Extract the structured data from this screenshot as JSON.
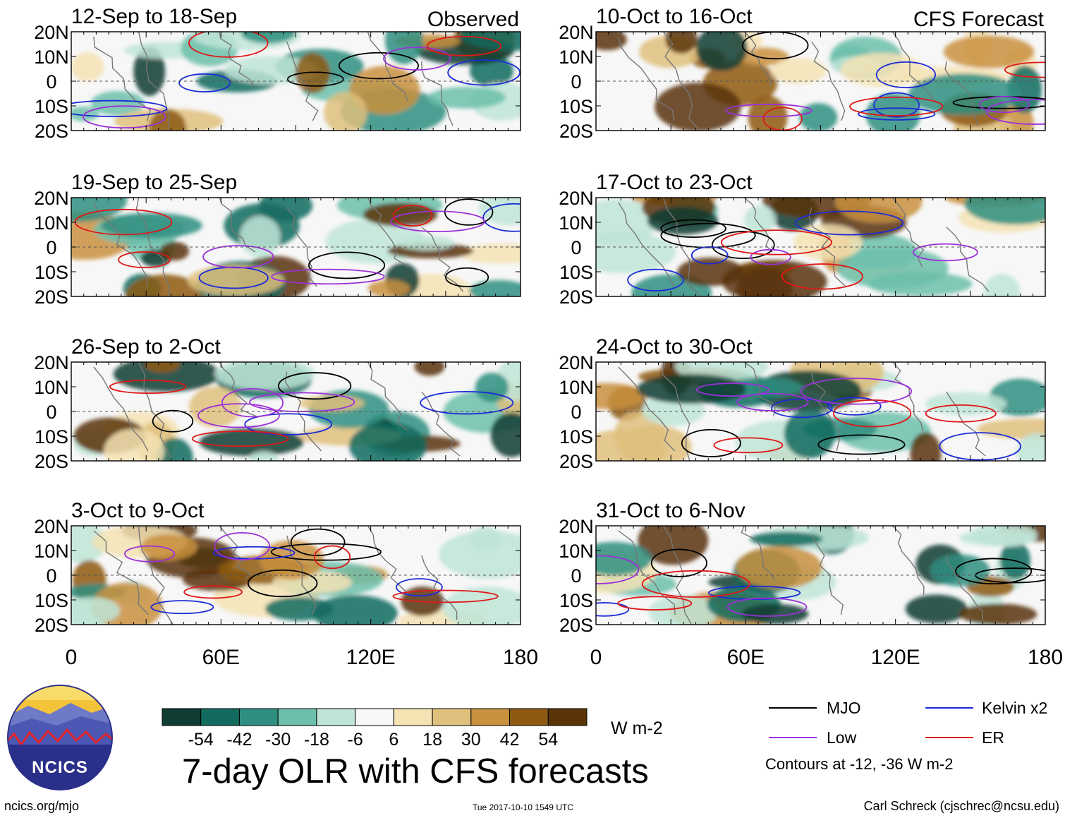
{
  "chart_data": {
    "type": "heatmap",
    "title": "7-day OLR with CFS forecasts",
    "units": "W m-2",
    "observed_label": "Observed",
    "forecast_label": "CFS Forecast",
    "x_ticks": [
      "0",
      "60E",
      "120E",
      "180"
    ],
    "y_ticks": [
      "20N",
      "10N",
      "0",
      "10S",
      "20S"
    ],
    "xlim": [
      0,
      180
    ],
    "ylim": [
      -20,
      20
    ],
    "panels": [
      {
        "period": "12-Sep to 18-Sep",
        "source": "Observed"
      },
      {
        "period": "19-Sep to 25-Sep",
        "source": "Observed"
      },
      {
        "period": "26-Sep to 2-Oct",
        "source": "Observed"
      },
      {
        "period": "3-Oct to 9-Oct",
        "source": "Observed"
      },
      {
        "period": "10-Oct to 16-Oct",
        "source": "CFS Forecast"
      },
      {
        "period": "17-Oct to 23-Oct",
        "source": "CFS Forecast"
      },
      {
        "period": "24-Oct to 30-Oct",
        "source": "CFS Forecast"
      },
      {
        "period": "31-Oct to 6-Nov",
        "source": "CFS Forecast"
      }
    ],
    "colorbar": {
      "labels": [
        "-54",
        "-42",
        "-30",
        "-18",
        "-6",
        "6",
        "18",
        "30",
        "42",
        "54"
      ],
      "colors": [
        "#0f3d33",
        "#136b5f",
        "#2f8f80",
        "#6cc0ab",
        "#bfe5d7",
        "#f7f7f7",
        "#f5e3b4",
        "#dfc07c",
        "#c9913e",
        "#8e5a13",
        "#5a3408"
      ]
    },
    "contour_legend": [
      {
        "name": "MJO",
        "color": "#000000"
      },
      {
        "name": "Kelvin x2",
        "color": "#1c2bd6"
      },
      {
        "name": "Low",
        "color": "#9b30d8"
      },
      {
        "name": "ER",
        "color": "#e01818"
      }
    ],
    "contour_note": "Contours at -12, -36 W m-2"
  },
  "logo": {
    "text": "NCICS"
  },
  "footer": {
    "url": "ncics.org/mjo",
    "timestamp": "Tue 2017-10-10 1549 UTC",
    "credit": "Carl Schreck (cjschrec@ncsu.edu)"
  }
}
